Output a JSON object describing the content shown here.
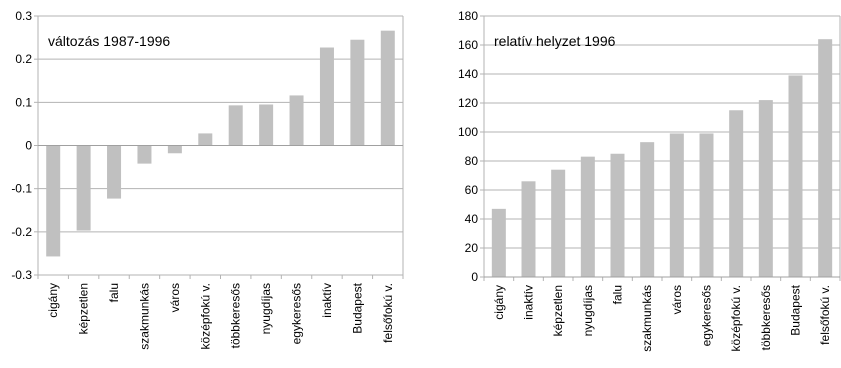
{
  "chart_data": [
    {
      "type": "bar",
      "title": "változás 1987-1996",
      "xlabel": "",
      "ylabel": "",
      "categories": [
        "cigány",
        "képzetlen",
        "falu",
        "szakmunkás",
        "város",
        "középfokú v.",
        "többkeresős",
        "nyugdíjas",
        "egykeresős",
        "inaktív",
        "Budapest",
        "felsőfokú v."
      ],
      "values": [
        -0.257,
        -0.197,
        -0.123,
        -0.042,
        -0.018,
        0.028,
        0.093,
        0.095,
        0.116,
        0.227,
        0.245,
        0.266
      ],
      "ylim": [
        -0.3,
        0.3
      ],
      "yticks": [
        "-0.3",
        "-0.2",
        "-0.1",
        "0",
        "0.1",
        "0.2",
        "0.3"
      ],
      "color": "#c0c0c0",
      "grid": true,
      "legend": "none"
    },
    {
      "type": "bar",
      "title": "relatív helyzet 1996",
      "xlabel": "",
      "ylabel": "",
      "categories": [
        "cigány",
        "inaktív",
        "képzetlen",
        "nyugdíjas",
        "falu",
        "szakmunkás",
        "város",
        "egykeresős",
        "középfokú v.",
        "többkeresős",
        "Budapest",
        "felsőfokú v."
      ],
      "values": [
        47,
        66,
        74,
        83,
        85,
        93,
        99,
        99,
        115,
        122,
        139,
        164
      ],
      "ylim": [
        0,
        180
      ],
      "yticks": [
        "0",
        "20",
        "40",
        "60",
        "80",
        "100",
        "120",
        "140",
        "160",
        "180"
      ],
      "color": "#c0c0c0",
      "grid": true,
      "legend": "none"
    }
  ]
}
